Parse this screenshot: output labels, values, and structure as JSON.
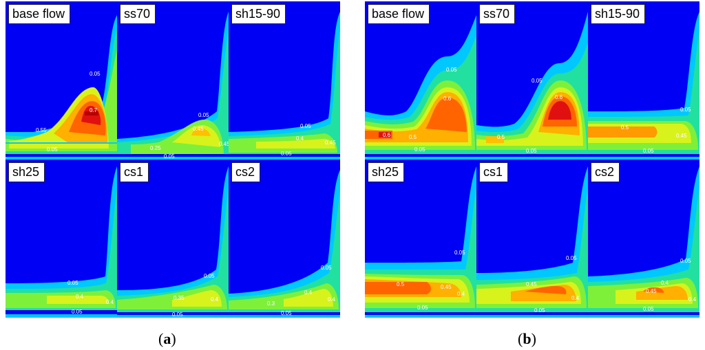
{
  "figures": [
    {
      "id": "a",
      "caption_letter": "a",
      "panels": [
        {
          "title": "base flow",
          "labels": [
            "0.05",
            "0.7",
            "0.55",
            "0.05"
          ]
        },
        {
          "title": "ss70",
          "labels": [
            "0.05",
            "0.45",
            "0.25",
            "0.05",
            "0.45"
          ]
        },
        {
          "title": "sh15-90",
          "labels": [
            "0.05",
            "0.4",
            "0.45",
            "0.05"
          ]
        },
        {
          "title": "sh25",
          "labels": [
            "0.05",
            "0.4",
            "0.4",
            "0.05"
          ]
        },
        {
          "title": "cs1",
          "labels": [
            "0.05",
            "0.35",
            "0.4",
            "0.05"
          ]
        },
        {
          "title": "cs2",
          "labels": [
            "0.05",
            "0.3",
            "0.4",
            "0.4",
            "0.05"
          ]
        }
      ]
    },
    {
      "id": "b",
      "caption_letter": "b",
      "panels": [
        {
          "title": "base flow",
          "labels": [
            "0.05",
            "0.6",
            "0.6",
            "0.5",
            "0.05"
          ]
        },
        {
          "title": "ss70",
          "labels": [
            "0.05",
            "0.6",
            "0.5",
            "0.05"
          ]
        },
        {
          "title": "sh15-90",
          "labels": [
            "0.05",
            "0.5",
            "0.45",
            "0.05"
          ]
        },
        {
          "title": "sh25",
          "labels": [
            "0.05",
            "0.5",
            "0.45",
            "0.4",
            "0.05"
          ]
        },
        {
          "title": "cs1",
          "labels": [
            "0.05",
            "0.45",
            "0.4",
            "0.05"
          ]
        },
        {
          "title": "cs2",
          "labels": [
            "0.05",
            "0.4",
            "0.45",
            "0.4",
            "0.05"
          ]
        }
      ]
    }
  ]
}
